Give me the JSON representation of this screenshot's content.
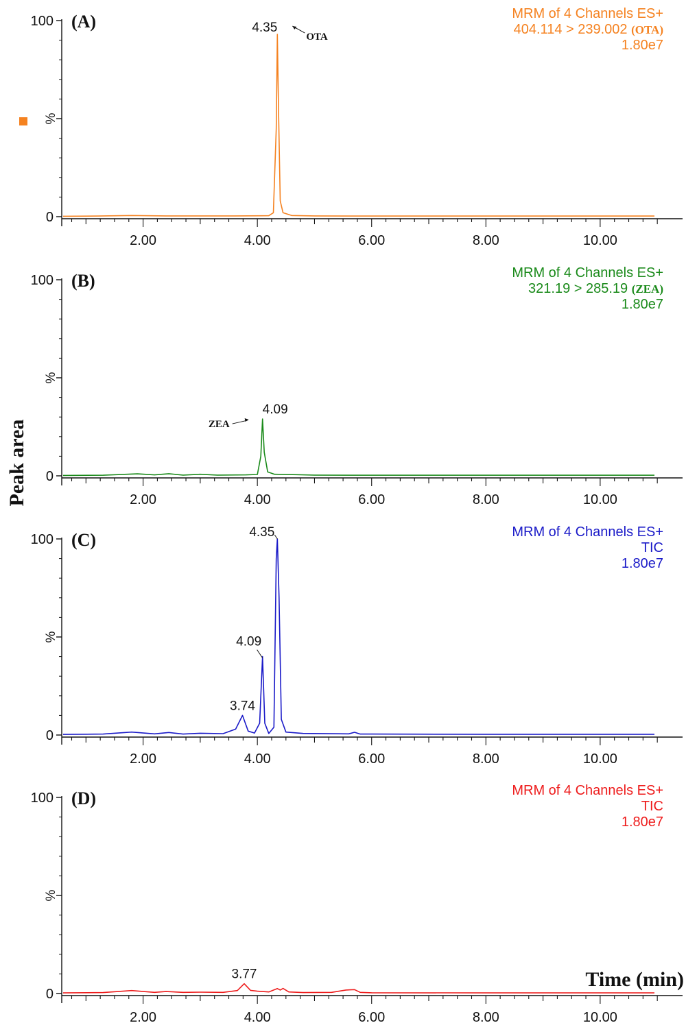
{
  "figure": {
    "ylabel": "Peak area",
    "xlabel": "Time (min)"
  },
  "chart_data": [
    {
      "type": "line",
      "panel": "(A)",
      "color": "#f58220",
      "info": [
        "MRM of 4 Channels ES+",
        "404.114 > 239.002",
        "1.80e7"
      ],
      "info_compound": "(OTA)",
      "xlim": [
        0.55,
        11.0
      ],
      "ylim": [
        0,
        100
      ],
      "xticks": [
        "2.00",
        "4.00",
        "6.00",
        "8.00",
        "10.00"
      ],
      "yticks": [
        "100",
        "%",
        "0"
      ],
      "peaks": [
        {
          "x": 4.35,
          "y": 93,
          "label": "4.35",
          "compound": "OTA"
        }
      ],
      "series": [
        {
          "x": [
            0.6,
            1.2,
            1.8,
            2.4,
            3.0,
            3.6,
            4.2,
            4.28,
            4.33,
            4.35,
            4.37,
            4.4,
            4.45,
            4.6,
            5.0,
            6.0,
            8.0,
            10.0,
            10.95
          ],
          "y": [
            0.2,
            0.3,
            0.6,
            0.4,
            0.4,
            0.4,
            0.5,
            2,
            45,
            93,
            55,
            8,
            2,
            0.6,
            0.4,
            0.3,
            0.3,
            0.3,
            0.3
          ]
        }
      ]
    },
    {
      "type": "line",
      "panel": "(B)",
      "color": "#1a8a1a",
      "info": [
        "MRM of 4 Channels ES+",
        "321.19 > 285.19",
        "1.80e7"
      ],
      "info_compound": "(ZEA)",
      "xlim": [
        0.55,
        11.0
      ],
      "ylim": [
        0,
        100
      ],
      "xticks": [
        "2.00",
        "4.00",
        "6.00",
        "8.00",
        "10.00"
      ],
      "yticks": [
        "100",
        "%",
        "0"
      ],
      "peaks": [
        {
          "x": 4.09,
          "y": 29,
          "label": "4.09",
          "compound": "ZEA"
        }
      ],
      "series": [
        {
          "x": [
            0.6,
            1.3,
            1.9,
            2.2,
            2.45,
            2.7,
            3.0,
            3.3,
            3.8,
            4.0,
            4.06,
            4.09,
            4.12,
            4.18,
            4.3,
            4.7,
            5.0,
            6.0,
            8.0,
            10.0,
            10.95
          ],
          "y": [
            0.2,
            0.3,
            1.0,
            0.5,
            1.1,
            0.4,
            0.8,
            0.4,
            0.5,
            0.7,
            10,
            29,
            12,
            2,
            0.8,
            0.6,
            0.4,
            0.3,
            0.3,
            0.3,
            0.3
          ]
        }
      ]
    },
    {
      "type": "line",
      "panel": "(C)",
      "color": "#1a1ac8",
      "info": [
        "MRM of 4 Channels ES+",
        "TIC",
        "1.80e7"
      ],
      "xlim": [
        0.55,
        11.0
      ],
      "ylim": [
        0,
        100
      ],
      "xticks": [
        "2.00",
        "4.00",
        "6.00",
        "8.00",
        "10.00"
      ],
      "yticks": [
        "100",
        "%",
        "0"
      ],
      "peaks": [
        {
          "x": 3.74,
          "y": 10,
          "label": "3.74"
        },
        {
          "x": 4.09,
          "y": 40,
          "label": "4.09"
        },
        {
          "x": 4.35,
          "y": 100,
          "label": "4.35"
        }
      ],
      "series": [
        {
          "x": [
            0.6,
            1.3,
            1.8,
            2.2,
            2.45,
            2.7,
            3.0,
            3.4,
            3.62,
            3.74,
            3.84,
            3.95,
            4.04,
            4.09,
            4.13,
            4.2,
            4.29,
            4.33,
            4.35,
            4.38,
            4.42,
            4.5,
            4.8,
            5.6,
            5.7,
            5.8,
            6.0,
            8.0,
            10.0,
            10.95
          ],
          "y": [
            0.3,
            0.5,
            1.5,
            0.6,
            1.3,
            0.5,
            0.9,
            0.7,
            3,
            10,
            2,
            1,
            6,
            40,
            6,
            0.8,
            4,
            90,
            100,
            70,
            8,
            1.5,
            0.8,
            0.6,
            1.4,
            0.5,
            0.5,
            0.4,
            0.4,
            0.4
          ]
        }
      ]
    },
    {
      "type": "line",
      "panel": "(D)",
      "color": "#ee1c1c",
      "info": [
        "MRM of 4 Channels ES+",
        "TIC",
        "1.80e7"
      ],
      "xlim": [
        0.55,
        11.0
      ],
      "ylim": [
        0,
        100
      ],
      "xticks": [
        "2.00",
        "4.00",
        "6.00",
        "8.00",
        "10.00"
      ],
      "yticks": [
        "100",
        "%",
        "0"
      ],
      "peaks": [
        {
          "x": 3.77,
          "y": 5,
          "label": "3.77"
        }
      ],
      "series": [
        {
          "x": [
            0.6,
            1.3,
            1.8,
            2.2,
            2.4,
            2.7,
            3.0,
            3.4,
            3.65,
            3.77,
            3.88,
            4.0,
            4.2,
            4.35,
            4.4,
            4.45,
            4.55,
            4.8,
            5.3,
            5.55,
            5.7,
            5.8,
            6.0,
            8.0,
            10.0,
            10.95
          ],
          "y": [
            0.3,
            0.5,
            1.5,
            0.6,
            1.0,
            0.6,
            0.7,
            0.6,
            1.5,
            5,
            1.6,
            1.2,
            0.8,
            2.5,
            1.8,
            2.6,
            0.8,
            0.5,
            0.6,
            1.8,
            2.0,
            0.6,
            0.4,
            0.3,
            0.3,
            0.3
          ]
        }
      ]
    }
  ]
}
